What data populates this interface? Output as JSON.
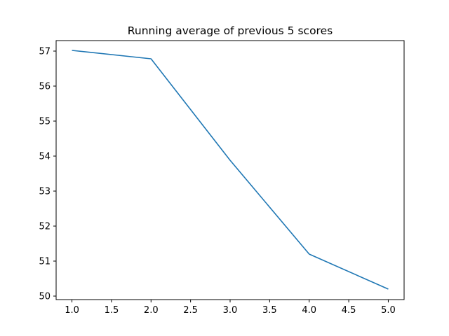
{
  "chart_data": {
    "type": "line",
    "title": "Running average of previous 5 scores",
    "xlabel": "",
    "ylabel": "",
    "x": [
      1.0,
      2.0,
      3.0,
      4.0,
      5.0
    ],
    "series": [
      {
        "values": [
          57.02,
          56.78,
          53.88,
          51.2,
          50.2
        ]
      }
    ],
    "xlim": [
      0.8,
      5.2
    ],
    "ylim": [
      49.9,
      57.3
    ],
    "xticks": [
      "1.0",
      "1.5",
      "2.0",
      "2.5",
      "3.0",
      "3.5",
      "4.0",
      "4.5",
      "5.0"
    ],
    "yticks": [
      "50",
      "51",
      "52",
      "53",
      "54",
      "55",
      "56",
      "57"
    ],
    "grid": false,
    "line_color": "#1f77b4"
  }
}
